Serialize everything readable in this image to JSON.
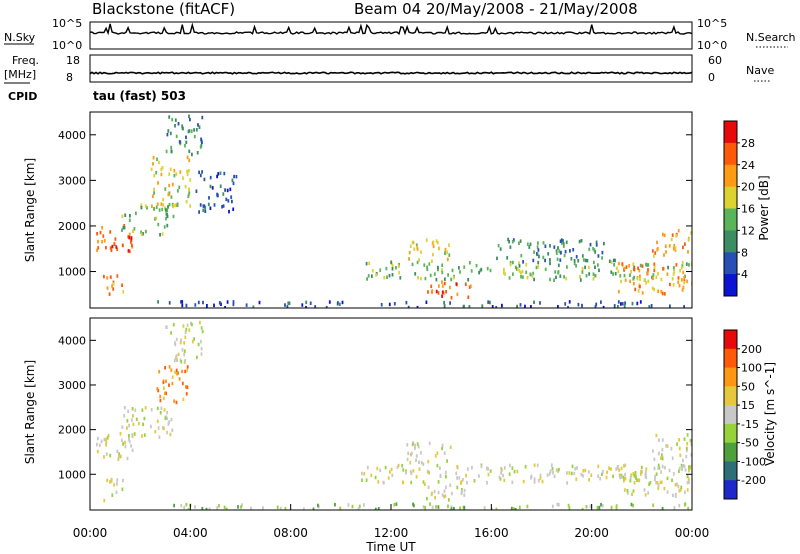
{
  "header": {
    "station": "Blackstone (fitACF)",
    "beam_date": "Beam 04 20/May/2008 - 21/May/2008"
  },
  "status_panels": {
    "nsky_label": "N.Sky",
    "nsky_top": "10^5",
    "nsky_bottom": "10^0",
    "nsearch_label": "N.Search",
    "nsearch_top": "10^5",
    "nsearch_bottom": "10^0",
    "freq_label": "Freq.",
    "freq_unit": "[MHz]",
    "freq_top": "18",
    "freq_bottom": "8",
    "nave_label": "Nave",
    "nave_top": "60",
    "nave_bottom": "0",
    "cpid_label": "CPID",
    "cpid_value": "tau (fast) 503"
  },
  "colors": {
    "power": [
      "#0a14d2",
      "#2850b4",
      "#3c8c64",
      "#5ab45a",
      "#dcd232",
      "#ff9b14",
      "#ff5a0a",
      "#e60a0a"
    ],
    "velocity": [
      "#1e28c8",
      "#2d6e78",
      "#4ea03c",
      "#96d23c",
      "#c8c8c8",
      "#e6c83c",
      "#ff9614",
      "#ff5a0a",
      "#e60a0a"
    ]
  },
  "chart_data": [
    {
      "type": "heatmap",
      "name": "Power",
      "xlabel": "",
      "ylabel": "Slant Range [km]",
      "ylim": [
        200,
        4500
      ],
      "yticks": [
        "1000",
        "2000",
        "3000",
        "4000"
      ],
      "colorbar_label": "Power [dB]",
      "colorbar_ticks": [
        "4",
        "8",
        "12",
        "16",
        "20",
        "24",
        "28"
      ],
      "regions": [
        {
          "t0": 0.2,
          "t1": 1.7,
          "r0": 1300,
          "r1": 2000,
          "level": 6
        },
        {
          "t0": 0.5,
          "t1": 1.3,
          "r0": 400,
          "r1": 900,
          "level": 5
        },
        {
          "t0": 1.2,
          "t1": 3.3,
          "r0": 1800,
          "r1": 2500,
          "level": 3
        },
        {
          "t0": 2.4,
          "t1": 4.0,
          "r0": 2400,
          "r1": 3500,
          "level": 4
        },
        {
          "t0": 3.0,
          "t1": 4.5,
          "r0": 3500,
          "r1": 4400,
          "level": 2
        },
        {
          "t0": 4.2,
          "t1": 5.8,
          "r0": 2300,
          "r1": 3200,
          "level": 1
        },
        {
          "t0": 10.8,
          "t1": 24.0,
          "r0": 800,
          "r1": 1200,
          "level": 3
        },
        {
          "t0": 13.3,
          "t1": 15.2,
          "r0": 400,
          "r1": 800,
          "level": 6
        },
        {
          "t0": 12.6,
          "t1": 14.4,
          "r0": 1200,
          "r1": 1700,
          "level": 4
        },
        {
          "t0": 21.0,
          "t1": 24.0,
          "r0": 500,
          "r1": 1200,
          "level": 5
        },
        {
          "t0": 22.4,
          "t1": 24.0,
          "r0": 1300,
          "r1": 1900,
          "level": 5
        },
        {
          "t0": 16.0,
          "t1": 21.0,
          "r0": 1200,
          "r1": 1700,
          "level": 2
        },
        {
          "t0": 2.5,
          "t1": 24.0,
          "r0": 200,
          "r1": 330,
          "level": 1
        }
      ]
    },
    {
      "type": "heatmap",
      "name": "Velocity",
      "xlabel": "Time UT",
      "ylabel": "Slant Range [km]",
      "ylim": [
        200,
        4500
      ],
      "yticks": [
        "1000",
        "2000",
        "3000",
        "4000"
      ],
      "colorbar_label": "Velocity [m s^-1]",
      "colorbar_ticks": [
        "200",
        "100",
        "50",
        "15",
        "-15",
        "-50",
        "-100",
        "-200"
      ],
      "xticks": [
        "00:00",
        "04:00",
        "08:00",
        "12:00",
        "16:00",
        "20:00",
        "00:00"
      ],
      "regions": [
        {
          "t0": 0.2,
          "t1": 1.7,
          "r0": 1300,
          "r1": 2000,
          "level": 4
        },
        {
          "t0": 0.5,
          "t1": 1.3,
          "r0": 400,
          "r1": 900,
          "level": 4
        },
        {
          "t0": 1.2,
          "t1": 3.3,
          "r0": 1800,
          "r1": 2500,
          "level": 4
        },
        {
          "t0": 2.6,
          "t1": 4.0,
          "r0": 2600,
          "r1": 3400,
          "level": 6
        },
        {
          "t0": 3.0,
          "t1": 4.5,
          "r0": 3500,
          "r1": 4400,
          "level": 4
        },
        {
          "t0": 10.8,
          "t1": 24.0,
          "r0": 800,
          "r1": 1200,
          "level": 4
        },
        {
          "t0": 13.3,
          "t1": 15.2,
          "r0": 400,
          "r1": 800,
          "level": 4
        },
        {
          "t0": 12.6,
          "t1": 14.4,
          "r0": 1200,
          "r1": 1700,
          "level": 4
        },
        {
          "t0": 21.0,
          "t1": 24.0,
          "r0": 500,
          "r1": 1200,
          "level": 4
        },
        {
          "t0": 22.4,
          "t1": 24.0,
          "r0": 1300,
          "r1": 1900,
          "level": 4
        },
        {
          "t0": 2.5,
          "t1": 24.0,
          "r0": 200,
          "r1": 330,
          "level": 3
        }
      ]
    }
  ]
}
